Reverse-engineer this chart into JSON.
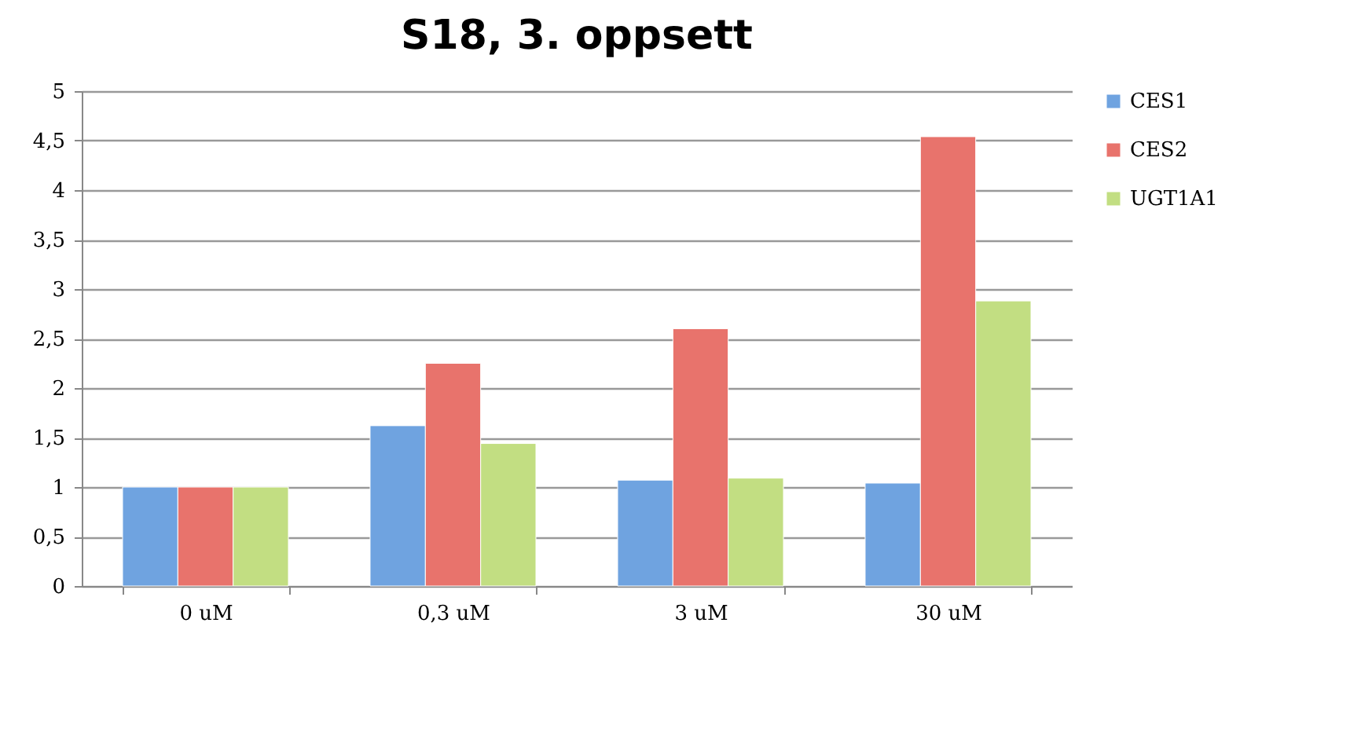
{
  "chart_data": {
    "type": "bar",
    "title": "S18, 3. oppsett",
    "categories": [
      "0 uM",
      "0,3 uM",
      "3 uM",
      "30 uM"
    ],
    "series": [
      {
        "name": "CES1",
        "color": "#6fa3e0",
        "values": [
          1.0,
          1.62,
          1.07,
          1.04
        ]
      },
      {
        "name": "CES2",
        "color": "#e8736c",
        "values": [
          1.0,
          2.25,
          2.6,
          4.54
        ]
      },
      {
        "name": "UGT1A1",
        "color": "#c2de82",
        "values": [
          1.0,
          1.44,
          1.09,
          2.88
        ]
      }
    ],
    "ylim": [
      0,
      5
    ],
    "yticks": [
      0,
      {
        "value": 0.5,
        "label": "0,5"
      },
      1,
      {
        "value": 1.5,
        "label": "1,5"
      },
      2,
      {
        "value": 2.5,
        "label": "2,5"
      },
      3,
      {
        "value": 3.5,
        "label": "3,5"
      },
      4,
      {
        "value": 4.5,
        "label": "4,5"
      },
      5
    ],
    "grid": "y",
    "legend": "right"
  }
}
